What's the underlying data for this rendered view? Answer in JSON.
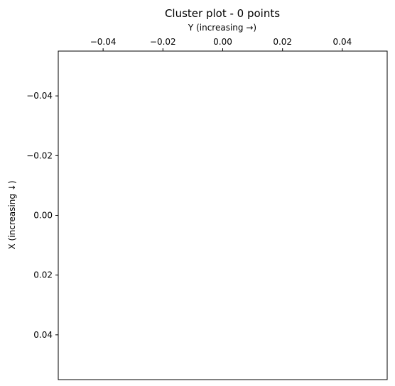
{
  "chart_data": {
    "type": "scatter",
    "title": "Cluster plot - 0 points",
    "xlabel": "Y (increasing →)",
    "ylabel": "X (increasing ↓)",
    "xaxis_position": "top",
    "yaxis_inverted": true,
    "xlim": [
      -0.055,
      0.055
    ],
    "ylim": [
      -0.055,
      0.055
    ],
    "xticks": [
      -0.04,
      -0.02,
      0.0,
      0.02,
      0.04
    ],
    "xtick_labels": [
      "−0.04",
      "−0.02",
      "0.00",
      "0.02",
      "0.04"
    ],
    "yticks": [
      -0.04,
      -0.02,
      0.0,
      0.02,
      0.04
    ],
    "ytick_labels": [
      "−0.04",
      "−0.02",
      "0.00",
      "0.02",
      "0.04"
    ],
    "grid": false,
    "points": []
  }
}
